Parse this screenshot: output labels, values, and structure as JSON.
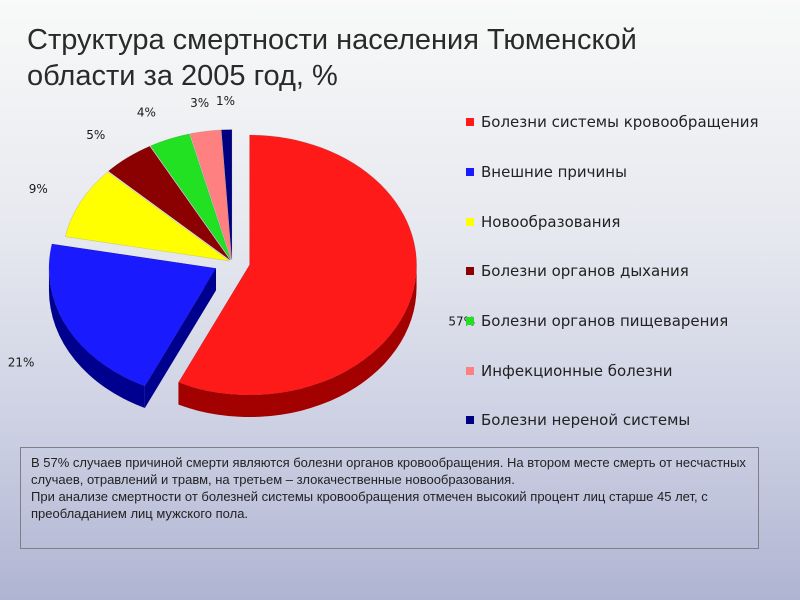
{
  "title": "Структура смертности населения  Тюменской области за 2005 год, %",
  "chart_data": {
    "type": "pie",
    "title": "Структура смертности населения  Тюменской области за 2005 год, %",
    "legend_position": "right",
    "slices": [
      {
        "label": "Болезни системы кровообращения",
        "value": 57,
        "value_label": "57%",
        "color": "#ff1a1a",
        "side_color": "#a30000",
        "exploded": true
      },
      {
        "label": "Внешние причины",
        "value": 21,
        "value_label": "21%",
        "color": "#1a1aff",
        "side_color": "#00008f",
        "exploded": true
      },
      {
        "label": "Новообразования",
        "value": 9,
        "value_label": "9%",
        "color": "#ffff00",
        "side_color": "#9a9a00",
        "exploded": false
      },
      {
        "label": "Болезни органов дыхания",
        "value": 5,
        "value_label": "5%",
        "color": "#8b0000",
        "side_color": "#4a0000",
        "exploded": false
      },
      {
        "label": "Болезни органов пищеварения",
        "value": 4,
        "value_label": "4%",
        "color": "#22e022",
        "side_color": "#0a7a0a",
        "exploded": false
      },
      {
        "label": "Инфекционные болезни",
        "value": 3,
        "value_label": "3%",
        "color": "#ff8080",
        "side_color": "#b24c4c",
        "exploded": false
      },
      {
        "label": "Болезни нервоной системы",
        "value": 1,
        "value_label": "1%",
        "color": "#000080",
        "side_color": "#00004a",
        "exploded": false
      }
    ]
  },
  "legend": [
    {
      "label": "Болезни системы кровообращения",
      "color": "#ff1a1a"
    },
    {
      "label": "Внешние причины",
      "color": "#1a1aff"
    },
    {
      "label": "Новообразования",
      "color": "#ffff00"
    },
    {
      "label": "Болезни органов дыхания",
      "color": "#8b0000"
    },
    {
      "label": "Болезни органов пищеварения",
      "color": "#22e022"
    },
    {
      "label": "Инфекционные болезни",
      "color": "#ff8080"
    },
    {
      "label": "Болезни нереной системы",
      "color": "#000080"
    }
  ],
  "note": {
    "paragraph1": "В 57% случаев причиной смерти являются болезни органов кровообращения. На втором месте смерть от несчастных случаев, отравлений и травм, на третьем – злокачественные новообразования.",
    "paragraph2": "При анализе смертности от болезней системы кровообращения отмечен высокий процент лиц старше 45 лет, с преобладанием лиц мужского пола."
  }
}
